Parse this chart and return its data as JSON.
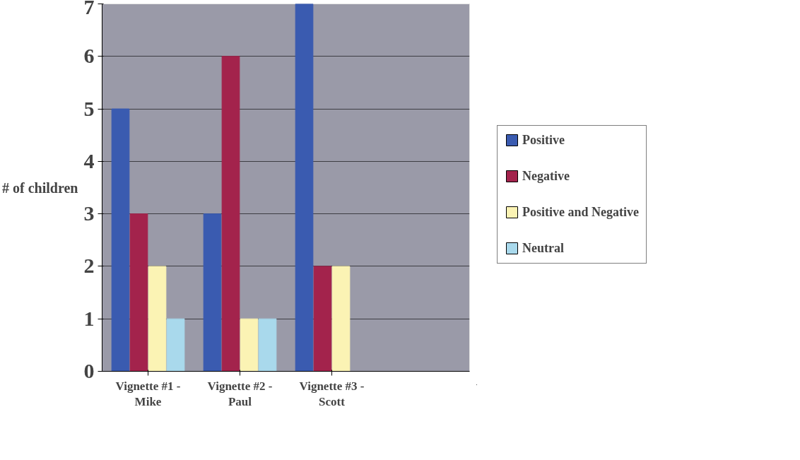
{
  "chart_data": {
    "type": "bar",
    "ylabel": "# of children",
    "categories": [
      "Vignette #1 - Mike",
      "Vignette #2 - Paul",
      "Vignette #3 - Scott"
    ],
    "series": [
      {
        "name": "Positive",
        "color": "#3a5bb0",
        "values": [
          5,
          3,
          7
        ]
      },
      {
        "name": "Negative",
        "color": "#a3234c",
        "values": [
          3,
          6,
          2
        ]
      },
      {
        "name": "Positive and Negative",
        "color": "#fbf3b4",
        "values": [
          2,
          1,
          2
        ]
      },
      {
        "name": "Neutral",
        "color": "#a9d9ec",
        "values": [
          1,
          1,
          0
        ]
      }
    ],
    "ylim": [
      0,
      7
    ],
    "yticks": [
      0,
      1,
      2,
      3,
      4,
      5,
      6,
      7
    ],
    "grid": "y",
    "legend": "right"
  }
}
